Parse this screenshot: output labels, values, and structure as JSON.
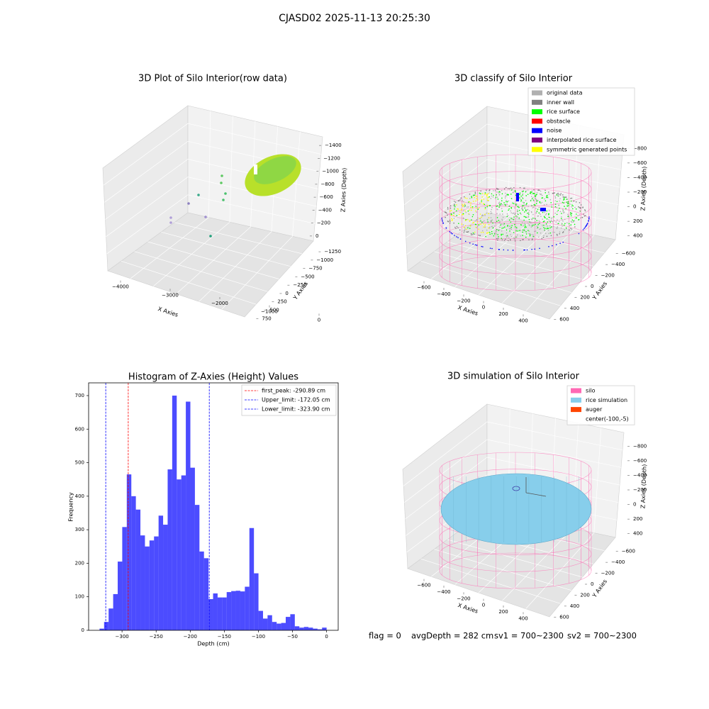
{
  "title": "CJASD02 2025-11-13 20:25:30",
  "chart_data": [
    {
      "type": "scatter3d",
      "title": "3D Plot of Silo Interior(row data)",
      "xlabel": "X Axies",
      "ylabel": "Y Axies",
      "zlabel": "Z Axies (Depth)",
      "xlim": [
        -4400,
        400
      ],
      "xticks": [
        {
          "value": -4000,
          "label": "−4000"
        },
        {
          "value": -3000,
          "label": "−3000"
        },
        {
          "value": -2000,
          "label": "−2000"
        },
        {
          "value": -1000,
          "label": "−1000"
        },
        0
      ],
      "ylim": [
        -1400,
        850
      ],
      "yticks": [
        750,
        500,
        250,
        0,
        {
          "value": -250,
          "label": "−250"
        },
        {
          "value": -500,
          "label": "−500"
        },
        {
          "value": -750,
          "label": "−750"
        },
        {
          "value": -1000,
          "label": "−1000"
        },
        {
          "value": -1250,
          "label": "−1250"
        }
      ],
      "zlim": [
        -1500,
        100
      ],
      "zticks": [
        0,
        {
          "value": -200,
          "label": "−200"
        },
        {
          "value": -400,
          "label": "−400"
        },
        {
          "value": -600,
          "label": "−600"
        },
        {
          "value": -800,
          "label": "−800"
        },
        {
          "value": -1000,
          "label": "−1000"
        },
        {
          "value": -1200,
          "label": "−1200"
        },
        {
          "value": -1400,
          "label": "−1400"
        }
      ]
    },
    {
      "type": "scatter3d",
      "title": "3D classify of Silo Interior",
      "xlabel": "X Axies",
      "ylabel": "Y Axies",
      "zlabel": "Z Axies (Depth)",
      "xlim": [
        -700,
        500
      ],
      "xticks": [
        {
          "value": -600,
          "label": "−600"
        },
        {
          "value": -400,
          "label": "−400"
        },
        {
          "value": -200,
          "label": "−200"
        },
        0,
        200,
        400
      ],
      "ylim": [
        -700,
        700
      ],
      "yticks": [
        600,
        400,
        200,
        0,
        {
          "value": -200,
          "label": "−200"
        },
        {
          "value": -400,
          "label": "−400"
        },
        {
          "value": -600,
          "label": "−600"
        }
      ],
      "zlim": [
        -900,
        500
      ],
      "zticks": [
        400,
        200,
        0,
        {
          "value": -200,
          "label": "−200"
        },
        {
          "value": -400,
          "label": "−400"
        },
        {
          "value": -600,
          "label": "−600"
        },
        {
          "value": -800,
          "label": "−800"
        }
      ],
      "legend": "upper right",
      "series": [
        {
          "name": "original data",
          "color": "#b0b0b0"
        },
        {
          "name": "inner wall",
          "color": "#808080"
        },
        {
          "name": "rice surface",
          "color": "#00ff00"
        },
        {
          "name": "obstacle",
          "color": "#ff0000"
        },
        {
          "name": "noise",
          "color": "#0000ff"
        },
        {
          "name": "interpolated rice surface",
          "color": "#800080"
        },
        {
          "name": "symmetric generated points",
          "color": "#ffff00"
        }
      ]
    },
    {
      "type": "histogram",
      "title": "Histogram of Z-Axies (Height) Values",
      "xlabel": "Depth (cm)",
      "ylabel": "Frequency",
      "color": "#0000ff",
      "bins": [
        -333,
        -326.34,
        -319.68,
        -313.02,
        -306.36,
        -299.7,
        -293.04,
        -286.38,
        -279.72,
        -273.06,
        -266.4,
        -259.74,
        -253.08,
        -246.42,
        -239.76,
        -233.1,
        -226.44,
        -219.78,
        -213.12,
        -206.46,
        -199.8,
        -193.14,
        -186.48,
        -179.82,
        -173.16,
        -166.5,
        -159.84,
        -153.18,
        -146.52,
        -139.86,
        -133.2,
        -126.54,
        -119.88,
        -113.22,
        -106.56,
        -99.9,
        -93.24,
        -86.58,
        -79.92,
        -73.26,
        -66.6,
        -59.94,
        -53.28,
        -46.62,
        -39.96,
        -33.3,
        -26.64,
        -19.98,
        -13.32,
        -6.66,
        0
      ],
      "values": [
        5,
        25,
        65,
        108,
        205,
        308,
        465,
        400,
        360,
        283,
        250,
        268,
        280,
        342,
        315,
        480,
        700,
        450,
        462,
        682,
        485,
        374,
        235,
        215,
        93,
        110,
        98,
        98,
        114,
        117,
        118,
        116,
        130,
        305,
        170,
        58,
        35,
        45,
        25,
        20,
        22,
        40,
        48,
        12,
        8,
        10,
        8,
        5,
        3,
        8
      ],
      "xlim": [
        -349,
        17
      ],
      "xticks": [
        {
          "value": -300,
          "label": "−300"
        },
        {
          "value": -250,
          "label": "−250"
        },
        {
          "value": -200,
          "label": "−200"
        },
        {
          "value": -150,
          "label": "−150"
        },
        {
          "value": -100,
          "label": "−100"
        },
        {
          "value": -50,
          "label": "−50"
        },
        0
      ],
      "ylim": [
        0,
        738
      ],
      "yticks": [
        0,
        100,
        200,
        300,
        400,
        500,
        600,
        700
      ],
      "legend": "upper right",
      "lines": [
        {
          "name": "first_peak: -290.89 cm",
          "value": -290.89,
          "color": "#ff0000"
        },
        {
          "name": "Upper_limit: -172.05 cm",
          "value": -172.05,
          "color": "#0000ff"
        },
        {
          "name": "Lower_limit: -323.90 cm",
          "value": -323.9,
          "color": "#0000ff"
        }
      ]
    },
    {
      "type": "surface3d",
      "title": "3D simulation of Silo Interior",
      "xlabel": "X Axies",
      "ylabel": "Y Axies",
      "zlabel": "Z Axies (Depth)",
      "xlim": [
        -700,
        500
      ],
      "xticks": [
        {
          "value": -600,
          "label": "−600"
        },
        {
          "value": -400,
          "label": "−400"
        },
        {
          "value": -200,
          "label": "−200"
        },
        0,
        200,
        400
      ],
      "ylim": [
        -700,
        700
      ],
      "yticks": [
        600,
        400,
        200,
        0,
        {
          "value": -200,
          "label": "−200"
        },
        {
          "value": -400,
          "label": "−400"
        },
        {
          "value": -600,
          "label": "−600"
        }
      ],
      "zlim": [
        -900,
        500
      ],
      "zticks": [
        400,
        200,
        0,
        {
          "value": -200,
          "label": "−200"
        },
        {
          "value": -400,
          "label": "−400"
        },
        {
          "value": -600,
          "label": "−600"
        },
        {
          "value": -800,
          "label": "−800"
        }
      ],
      "legend": "upper right",
      "series": [
        {
          "name": "silo",
          "color": "#ff69b4"
        },
        {
          "name": "rice simulation",
          "color": "#87ceeb"
        },
        {
          "name": "auger",
          "color": "#ff4500"
        },
        {
          "name": "center(-100,-5)"
        }
      ]
    }
  ],
  "footer": [
    "flag = 0",
    "avgDepth = 282 cm",
    "sv1 = 700~2300",
    "sv2 = 700~2300"
  ]
}
